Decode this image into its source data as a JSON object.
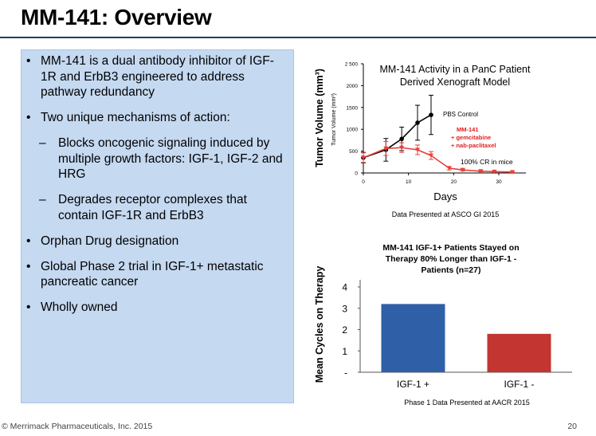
{
  "slide": {
    "title": "MM-141: Overview",
    "footer_left": "© Merrimack Pharmaceuticals, Inc. 2015",
    "page_number": "20"
  },
  "bullets": [
    {
      "level": 1,
      "text": "MM-141 is a dual antibody inhibitor of IGF-1R and ErbB3 engineered to address pathway redundancy"
    },
    {
      "level": 1,
      "text": "Two unique mechanisms of action:"
    },
    {
      "level": 2,
      "text": "Blocks oncogenic signaling induced by multiple growth factors: IGF-1, IGF-2 and HRG"
    },
    {
      "level": 2,
      "text": "Degrades receptor complexes that contain IGF-1R and ErbB3"
    },
    {
      "level": 1,
      "text": "Orphan Drug designation"
    },
    {
      "level": 1,
      "text": "Global Phase 2 trial in IGF-1+ metastatic pancreatic cancer"
    },
    {
      "level": 1,
      "text": "Wholly owned"
    }
  ],
  "colors": {
    "title_rule": "#1f3b6e",
    "panel_bg": "#c5d9f1",
    "control_series": "#000000",
    "treatment_series": "#e8413c",
    "treatment_label": "#e02020",
    "bar_igf_pos": "#2f5fa7",
    "bar_igf_neg": "#c23530"
  },
  "chart_data": [
    {
      "type": "line",
      "title_line1": "MM-141 Activity in a PanC Patient",
      "title_line2": "Derived Xenograft Model",
      "ylabel_outer": "Tumor Volume (mm³)",
      "ylabel_inner": "Tumor Volume (mm³)",
      "xlabel": "Days",
      "xlim": [
        0,
        36
      ],
      "ylim": [
        0,
        2500
      ],
      "xticks": [
        0,
        10,
        20,
        30
      ],
      "xtick_labels": [
        "0",
        "10",
        "20",
        "30"
      ],
      "yticks": [
        0,
        500,
        1000,
        1500,
        2000,
        2500
      ],
      "ytick_labels": [
        "0",
        "500",
        "1000",
        "1500",
        "2000",
        "2 500"
      ],
      "series": [
        {
          "name": "PBS Control",
          "x": [
            0,
            5,
            8.5,
            12,
            15
          ],
          "y": [
            350,
            530,
            780,
            1150,
            1330
          ],
          "err": [
            120,
            260,
            270,
            400,
            450
          ]
        },
        {
          "name": "MM-141 + gemcitabine + nab-paclitaxel",
          "x": [
            0,
            5,
            8.5,
            12,
            15,
            19,
            22,
            26,
            29,
            33
          ],
          "y": [
            350,
            560,
            580,
            530,
            400,
            110,
            70,
            40,
            30,
            20
          ],
          "err": [
            110,
            160,
            110,
            110,
            90,
            40,
            25,
            15,
            10,
            10
          ]
        }
      ],
      "legend_control": "PBS Control",
      "legend_treatment": [
        "MM-141",
        "+ gemcitabine",
        "+ nab-paclitaxel"
      ],
      "annotation_cr": "100% CR in mice",
      "caption": "Data Presented at ASCO GI 2015"
    },
    {
      "type": "bar",
      "title_lines": [
        "MM-141 IGF-1+ Patients Stayed on",
        "Therapy 80% Longer than IGF-1 -",
        "Patients (n=27)"
      ],
      "ylabel": "Mean Cycles on Therapy",
      "categories": [
        "IGF-1 +",
        "IGF-1 -"
      ],
      "values": [
        3.2,
        1.8
      ],
      "ylim": [
        0,
        4
      ],
      "yticks": [
        0,
        1,
        2,
        3,
        4
      ],
      "ytick_labels": [
        "-",
        "1",
        "2",
        "3",
        "4"
      ],
      "caption": "Phase 1 Data Presented at AACR 2015"
    }
  ]
}
